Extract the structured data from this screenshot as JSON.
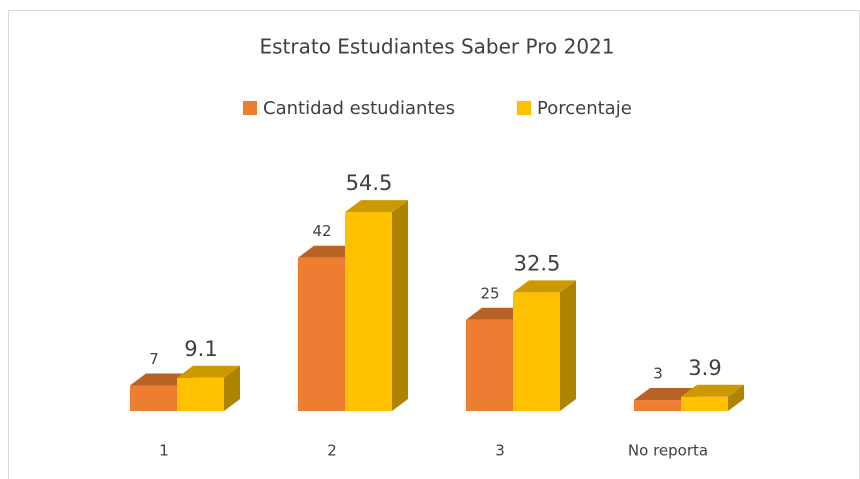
{
  "chart_data": {
    "type": "bar3d",
    "title": "Estrato Estudiantes Saber Pro 2021",
    "categories": [
      "1",
      "2",
      "3",
      "No reporta"
    ],
    "series": [
      {
        "name": "Cantidad estudiantes",
        "color": "#ED7D31",
        "values": [
          7,
          42,
          25,
          3
        ]
      },
      {
        "name": "Porcentaje",
        "color": "#FFC000",
        "values": [
          9.1,
          54.5,
          32.5,
          3.9
        ]
      }
    ],
    "legend": "top"
  }
}
